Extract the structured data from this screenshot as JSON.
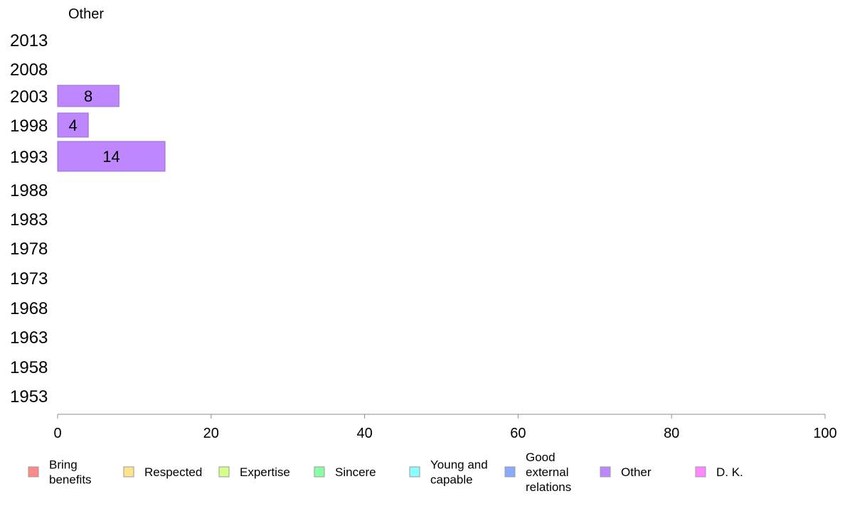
{
  "chart_data": {
    "type": "bar",
    "orientation": "horizontal",
    "title": "Other",
    "xlabel": "",
    "ylabel": "",
    "xlim": [
      0,
      100
    ],
    "x_ticks": [
      "0",
      "20",
      "40",
      "60",
      "80",
      "100"
    ],
    "categories": [
      "2013",
      "2008",
      "2003",
      "1998",
      "1993",
      "1988",
      "1983",
      "1978",
      "1973",
      "1968",
      "1963",
      "1958",
      "1953"
    ],
    "series": [
      {
        "name": "Other",
        "color": "#bf87ff",
        "values": [
          null,
          null,
          8,
          4,
          14,
          null,
          null,
          null,
          null,
          null,
          null,
          null,
          null
        ],
        "labels": [
          "",
          "",
          "8",
          "4",
          "14",
          "",
          "",
          "",
          "",
          "",
          "",
          "",
          ""
        ]
      }
    ],
    "grid": false,
    "legend_position": "bottom",
    "legend": [
      {
        "label": "Bring\nbenefits",
        "color": "#ff8a8a"
      },
      {
        "label": "Respected",
        "color": "#ffe48a"
      },
      {
        "label": "Expertise",
        "color": "#d4ff8a"
      },
      {
        "label": "Sincere",
        "color": "#8affa8"
      },
      {
        "label": "Young and\ncapable",
        "color": "#8affff"
      },
      {
        "label": "Good\nexternal\nrelations",
        "color": "#8aaaff"
      },
      {
        "label": "Other",
        "color": "#bf87ff"
      },
      {
        "label": "D. K.",
        "color": "#ff8aff"
      }
    ]
  }
}
